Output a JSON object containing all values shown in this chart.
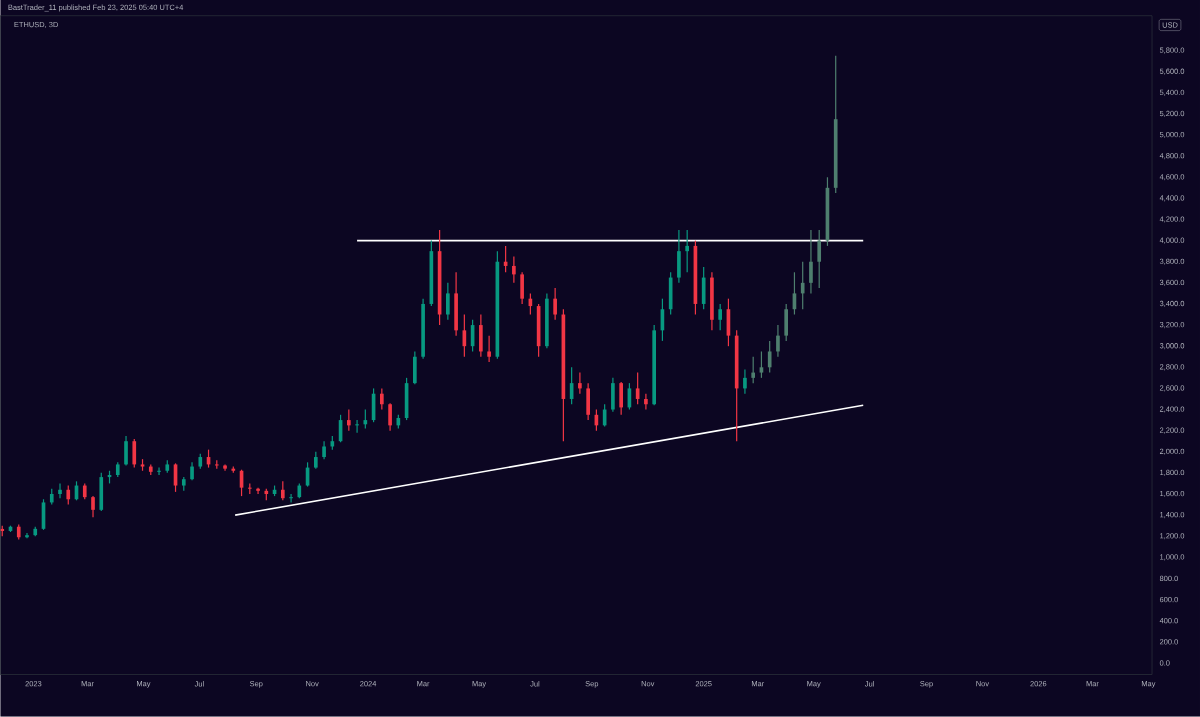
{
  "chart_data": {
    "type": "candlestick",
    "title": "ETHUSD, 3D",
    "ylabel": "USD",
    "annotations": [
      "BastTrader_11 published Feb 23, 2025 05:40 UTC+4"
    ],
    "xlim": [
      "2022-11-26",
      "2026-05-05"
    ],
    "xticks": [
      {
        "value": "2023-01-01",
        "label": "2023"
      },
      {
        "value": "2023-03-01",
        "label": "Mar"
      },
      {
        "value": "2023-05-01",
        "label": "May"
      },
      {
        "value": "2023-07-01",
        "label": "Jul"
      },
      {
        "value": "2023-09-01",
        "label": "Sep"
      },
      {
        "value": "2023-11-01",
        "label": "Nov"
      },
      {
        "value": "2024-01-01",
        "label": "2024"
      },
      {
        "value": "2024-03-01",
        "label": "Mar"
      },
      {
        "value": "2024-05-01",
        "label": "May"
      },
      {
        "value": "2024-07-01",
        "label": "Jul"
      },
      {
        "value": "2024-09-01",
        "label": "Sep"
      },
      {
        "value": "2024-11-01",
        "label": "Nov"
      },
      {
        "value": "2025-01-01",
        "label": "2025"
      },
      {
        "value": "2025-03-01",
        "label": "Mar"
      },
      {
        "value": "2025-05-01",
        "label": "May"
      },
      {
        "value": "2025-07-01",
        "label": "Jul"
      },
      {
        "value": "2025-09-01",
        "label": "Sep"
      },
      {
        "value": "2025-11-01",
        "label": "Nov"
      },
      {
        "value": "2026-01-01",
        "label": "2026"
      },
      {
        "value": "2026-03-01",
        "label": "Mar"
      },
      {
        "value": "2026-05-01",
        "label": "May"
      }
    ],
    "ylim": [
      -110,
      6130
    ],
    "yticks": [
      {
        "value": 0,
        "label": "0.0"
      },
      {
        "value": 200,
        "label": "200.0"
      },
      {
        "value": 400,
        "label": "400.0"
      },
      {
        "value": 600,
        "label": "600.0"
      },
      {
        "value": 800,
        "label": "800.0"
      },
      {
        "value": 1000,
        "label": "1,000.0"
      },
      {
        "value": 1200,
        "label": "1,200.0"
      },
      {
        "value": 1400,
        "label": "1,400.0"
      },
      {
        "value": 1600,
        "label": "1,600.0"
      },
      {
        "value": 1800,
        "label": "1,800.0"
      },
      {
        "value": 2000,
        "label": "2,000.0"
      },
      {
        "value": 2200,
        "label": "2,200.0"
      },
      {
        "value": 2400,
        "label": "2,400.0"
      },
      {
        "value": 2600,
        "label": "2,600.0"
      },
      {
        "value": 2800,
        "label": "2,800.0"
      },
      {
        "value": 3000,
        "label": "3,000.0"
      },
      {
        "value": 3200,
        "label": "3,200.0"
      },
      {
        "value": 3400,
        "label": "3,400.0"
      },
      {
        "value": 3600,
        "label": "3,600.0"
      },
      {
        "value": 3800,
        "label": "3,800.0"
      },
      {
        "value": 4000,
        "label": "4,000.0"
      },
      {
        "value": 4200,
        "label": "4,200.0"
      },
      {
        "value": 4400,
        "label": "4,400.0"
      },
      {
        "value": 4600,
        "label": "4,600.0"
      },
      {
        "value": 4800,
        "label": "4,800.0"
      },
      {
        "value": 5000,
        "label": "5,000.0"
      },
      {
        "value": 5200,
        "label": "5,200.0"
      },
      {
        "value": 5400,
        "label": "5,400.0"
      },
      {
        "value": 5600,
        "label": "5,600.0"
      },
      {
        "value": 5800,
        "label": "5,800.0"
      }
    ],
    "x": [
      "2022-11-28",
      "2022-12-07",
      "2022-12-16",
      "2022-12-25",
      "2023-01-03",
      "2023-01-12",
      "2023-01-21",
      "2023-01-30",
      "2023-02-08",
      "2023-02-17",
      "2023-02-26",
      "2023-03-07",
      "2023-03-16",
      "2023-03-25",
      "2023-04-03",
      "2023-04-12",
      "2023-04-21",
      "2023-04-30",
      "2023-05-09",
      "2023-05-18",
      "2023-05-27",
      "2023-06-05",
      "2023-06-14",
      "2023-06-23",
      "2023-07-02",
      "2023-07-11",
      "2023-07-20",
      "2023-07-29",
      "2023-08-07",
      "2023-08-16",
      "2023-08-25",
      "2023-09-03",
      "2023-09-12",
      "2023-09-21",
      "2023-09-30",
      "2023-10-09",
      "2023-10-18",
      "2023-10-27",
      "2023-11-05",
      "2023-11-14",
      "2023-11-23",
      "2023-12-02",
      "2023-12-11",
      "2023-12-20",
      "2023-12-29",
      "2024-01-07",
      "2024-01-16",
      "2024-01-25",
      "2024-02-03",
      "2024-02-12",
      "2024-02-21",
      "2024-03-01",
      "2024-03-10",
      "2024-03-19",
      "2024-03-28",
      "2024-04-06",
      "2024-04-15",
      "2024-04-24",
      "2024-05-03",
      "2024-05-12",
      "2024-05-21",
      "2024-05-30",
      "2024-06-08",
      "2024-06-17",
      "2024-06-26",
      "2024-07-05",
      "2024-07-14",
      "2024-07-23",
      "2024-08-01",
      "2024-08-10",
      "2024-08-19",
      "2024-08-28",
      "2024-09-06",
      "2024-09-15",
      "2024-09-24",
      "2024-10-03",
      "2024-10-12",
      "2024-10-21",
      "2024-10-30",
      "2024-11-08",
      "2024-11-17",
      "2024-11-26",
      "2024-12-05",
      "2024-12-14",
      "2024-12-23",
      "2025-01-01",
      "2025-01-10",
      "2025-01-19",
      "2025-01-28",
      "2025-02-06",
      "2025-02-15",
      "2025-02-24",
      "2025-03-05",
      "2025-03-14",
      "2025-03-23",
      "2025-04-01",
      "2025-04-10",
      "2025-04-19",
      "2025-04-28",
      "2025-05-07",
      "2025-05-16",
      "2025-05-25"
    ],
    "ohlc": [
      [
        1270,
        1300,
        1200,
        1250
      ],
      [
        1250,
        1300,
        1240,
        1290
      ],
      [
        1290,
        1310,
        1170,
        1190
      ],
      [
        1190,
        1230,
        1180,
        1210
      ],
      [
        1210,
        1290,
        1200,
        1270
      ],
      [
        1270,
        1550,
        1260,
        1520
      ],
      [
        1520,
        1650,
        1500,
        1600
      ],
      [
        1600,
        1700,
        1560,
        1640
      ],
      [
        1640,
        1680,
        1500,
        1550
      ],
      [
        1550,
        1720,
        1540,
        1680
      ],
      [
        1680,
        1700,
        1550,
        1570
      ],
      [
        1570,
        1580,
        1380,
        1450
      ],
      [
        1450,
        1800,
        1440,
        1760
      ],
      [
        1760,
        1820,
        1700,
        1780
      ],
      [
        1780,
        1900,
        1760,
        1880
      ],
      [
        1880,
        2150,
        1870,
        2100
      ],
      [
        2100,
        2120,
        1850,
        1880
      ],
      [
        1880,
        1930,
        1820,
        1860
      ],
      [
        1860,
        1880,
        1780,
        1810
      ],
      [
        1810,
        1850,
        1780,
        1820
      ],
      [
        1820,
        1920,
        1800,
        1880
      ],
      [
        1880,
        1890,
        1620,
        1680
      ],
      [
        1680,
        1760,
        1630,
        1740
      ],
      [
        1740,
        1900,
        1730,
        1860
      ],
      [
        1860,
        1980,
        1840,
        1950
      ],
      [
        1950,
        2020,
        1850,
        1880
      ],
      [
        1880,
        1920,
        1840,
        1870
      ],
      [
        1870,
        1880,
        1820,
        1840
      ],
      [
        1840,
        1860,
        1800,
        1820
      ],
      [
        1820,
        1830,
        1580,
        1660
      ],
      [
        1660,
        1700,
        1600,
        1650
      ],
      [
        1650,
        1660,
        1600,
        1630
      ],
      [
        1630,
        1650,
        1540,
        1600
      ],
      [
        1600,
        1680,
        1580,
        1640
      ],
      [
        1640,
        1720,
        1540,
        1560
      ],
      [
        1560,
        1600,
        1520,
        1570
      ],
      [
        1570,
        1700,
        1560,
        1680
      ],
      [
        1680,
        1900,
        1670,
        1850
      ],
      [
        1850,
        2000,
        1840,
        1950
      ],
      [
        1950,
        2100,
        1930,
        2050
      ],
      [
        2050,
        2150,
        2020,
        2100
      ],
      [
        2100,
        2350,
        2090,
        2300
      ],
      [
        2300,
        2400,
        2200,
        2250
      ],
      [
        2250,
        2300,
        2180,
        2260
      ],
      [
        2260,
        2400,
        2220,
        2300
      ],
      [
        2300,
        2600,
        2280,
        2550
      ],
      [
        2550,
        2600,
        2400,
        2450
      ],
      [
        2450,
        2460,
        2200,
        2250
      ],
      [
        2250,
        2350,
        2220,
        2320
      ],
      [
        2320,
        2700,
        2300,
        2650
      ],
      [
        2650,
        2950,
        2640,
        2900
      ],
      [
        2900,
        3450,
        2880,
        3400
      ],
      [
        3400,
        4000,
        3380,
        3900
      ],
      [
        3900,
        4100,
        3200,
        3300
      ],
      [
        3300,
        3600,
        3250,
        3500
      ],
      [
        3500,
        3700,
        3100,
        3150
      ],
      [
        3150,
        3300,
        2900,
        3000
      ],
      [
        3000,
        3250,
        2950,
        3200
      ],
      [
        3200,
        3300,
        2900,
        2950
      ],
      [
        2950,
        3100,
        2850,
        2900
      ],
      [
        2900,
        3900,
        2880,
        3800
      ],
      [
        3800,
        3950,
        3700,
        3760
      ],
      [
        3760,
        3850,
        3600,
        3680
      ],
      [
        3680,
        3700,
        3400,
        3450
      ],
      [
        3450,
        3500,
        3300,
        3380
      ],
      [
        3380,
        3400,
        2900,
        3000
      ],
      [
        3000,
        3500,
        2980,
        3450
      ],
      [
        3450,
        3550,
        3250,
        3300
      ],
      [
        3300,
        3350,
        2100,
        2500
      ],
      [
        2500,
        2800,
        2450,
        2650
      ],
      [
        2650,
        2750,
        2550,
        2600
      ],
      [
        2600,
        2650,
        2300,
        2350
      ],
      [
        2350,
        2400,
        2200,
        2250
      ],
      [
        2250,
        2450,
        2240,
        2400
      ],
      [
        2400,
        2700,
        2380,
        2650
      ],
      [
        2650,
        2660,
        2350,
        2420
      ],
      [
        2420,
        2650,
        2400,
        2600
      ],
      [
        2600,
        2750,
        2450,
        2500
      ],
      [
        2500,
        2550,
        2400,
        2450
      ],
      [
        2450,
        3200,
        2440,
        3150
      ],
      [
        3150,
        3450,
        3050,
        3350
      ],
      [
        3350,
        3700,
        3300,
        3650
      ],
      [
        3650,
        4100,
        3600,
        3900
      ],
      [
        3900,
        4100,
        3700,
        3950
      ],
      [
        3950,
        4000,
        3300,
        3400
      ],
      [
        3400,
        3750,
        3350,
        3650
      ],
      [
        3650,
        3700,
        3150,
        3250
      ],
      [
        3250,
        3400,
        3150,
        3350
      ],
      [
        3350,
        3450,
        3000,
        3100
      ],
      [
        3100,
        3150,
        2100,
        2600
      ],
      [
        2600,
        2780,
        2550,
        2700
      ],
      [
        2700,
        2900,
        2650,
        2750
      ],
      [
        2750,
        2950,
        2700,
        2800
      ],
      [
        2800,
        3050,
        2750,
        2950
      ],
      [
        2950,
        3200,
        2900,
        3100
      ],
      [
        3100,
        3400,
        3050,
        3350
      ],
      [
        3350,
        3700,
        3300,
        3500
      ],
      [
        3500,
        3800,
        3350,
        3600
      ],
      [
        3600,
        4100,
        3500,
        3800
      ],
      [
        3800,
        4100,
        3550,
        4000
      ],
      [
        4000,
        4600,
        3950,
        4500
      ],
      [
        4500,
        5750,
        4450,
        5150
      ]
    ],
    "colors": [
      "#f23645",
      "#089981",
      "#f23645",
      "#089981",
      "#089981",
      "#089981",
      "#089981",
      "#089981",
      "#f23645",
      "#089981",
      "#f23645",
      "#f23645",
      "#089981",
      "#089981",
      "#089981",
      "#089981",
      "#f23645",
      "#f23645",
      "#f23645",
      "#089981",
      "#089981",
      "#f23645",
      "#089981",
      "#089981",
      "#089981",
      "#f23645",
      "#f23645",
      "#f23645",
      "#f23645",
      "#f23645",
      "#f23645",
      "#f23645",
      "#f23645",
      "#089981",
      "#f23645",
      "#089981",
      "#089981",
      "#089981",
      "#089981",
      "#089981",
      "#089981",
      "#089981",
      "#f23645",
      "#089981",
      "#089981",
      "#089981",
      "#f23645",
      "#f23645",
      "#089981",
      "#089981",
      "#089981",
      "#089981",
      "#089981",
      "#f23645",
      "#089981",
      "#f23645",
      "#f23645",
      "#089981",
      "#f23645",
      "#f23645",
      "#089981",
      "#f23645",
      "#f23645",
      "#f23645",
      "#f23645",
      "#f23645",
      "#089981",
      "#f23645",
      "#f23645",
      "#089981",
      "#f23645",
      "#f23645",
      "#f23645",
      "#089981",
      "#089981",
      "#f23645",
      "#089981",
      "#f23645",
      "#f23645",
      "#089981",
      "#089981",
      "#089981",
      "#089981",
      "#089981",
      "#f23645",
      "#089981",
      "#f23645",
      "#089981",
      "#f23645",
      "#f23645",
      "#089981",
      "#4f7f6f",
      "#4f7f6f",
      "#4f7f6f",
      "#4f7f6f",
      "#4f7f6f",
      "#4f7f6f",
      "#4f7f6f",
      "#4f7f6f",
      "#4f7f6f",
      "#4f7f6f",
      "#4f7f6f"
    ],
    "series": [
      {
        "type": "line",
        "x": [
          "2023-12-20",
          "2025-06-24"
        ],
        "values": [
          4000,
          4000
        ],
        "color": "#ffffff"
      },
      {
        "type": "line",
        "x": [
          "2023-08-09",
          "2025-06-24"
        ],
        "values": [
          1400,
          2440
        ],
        "color": "#ffffff"
      }
    ]
  }
}
